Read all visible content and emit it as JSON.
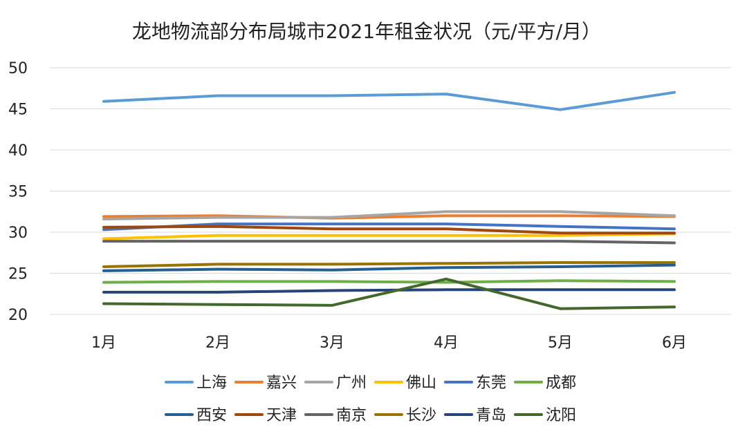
{
  "chart_data": {
    "type": "line",
    "title": "龙地物流部分布局城市2021年租金状况（元/平方/月）",
    "xlabel": "",
    "ylabel": "",
    "categories": [
      "1月",
      "2月",
      "3月",
      "4月",
      "5月",
      "6月"
    ],
    "ylim": [
      20,
      50
    ],
    "yticks": [
      20,
      25,
      30,
      35,
      40,
      45,
      50
    ],
    "grid": true,
    "legend_position": "bottom",
    "series": [
      {
        "name": "上海",
        "color": "#5B9BD5",
        "values": [
          45.9,
          46.6,
          46.6,
          46.8,
          44.9,
          47.0
        ]
      },
      {
        "name": "嘉兴",
        "color": "#ED7D31",
        "values": [
          31.9,
          32.0,
          31.7,
          32.0,
          32.0,
          31.9
        ]
      },
      {
        "name": "广州",
        "color": "#A5A5A5",
        "values": [
          31.6,
          31.8,
          31.8,
          32.5,
          32.5,
          32.0
        ]
      },
      {
        "name": "佛山",
        "color": "#FFC000",
        "values": [
          29.2,
          29.6,
          29.6,
          29.6,
          29.6,
          29.8
        ]
      },
      {
        "name": "东莞",
        "color": "#4472C4",
        "values": [
          30.3,
          31.0,
          31.0,
          31.0,
          30.7,
          30.4
        ]
      },
      {
        "name": "成都",
        "color": "#70AD47",
        "values": [
          23.9,
          24.0,
          24.0,
          23.9,
          24.1,
          24.0
        ]
      },
      {
        "name": "西安",
        "color": "#255E91",
        "values": [
          25.3,
          25.5,
          25.4,
          25.7,
          25.8,
          26.0
        ]
      },
      {
        "name": "天津",
        "color": "#9E480E",
        "values": [
          30.6,
          30.7,
          30.4,
          30.4,
          29.9,
          29.9
        ]
      },
      {
        "name": "南京",
        "color": "#636363",
        "values": [
          28.9,
          28.9,
          28.9,
          28.9,
          28.9,
          28.7
        ]
      },
      {
        "name": "长沙",
        "color": "#997300",
        "values": [
          25.8,
          26.1,
          26.1,
          26.2,
          26.3,
          26.3
        ]
      },
      {
        "name": "青岛",
        "color": "#264478",
        "values": [
          22.7,
          22.7,
          22.9,
          23.0,
          23.0,
          23.0
        ]
      },
      {
        "name": "沈阳",
        "color": "#43682B",
        "values": [
          21.3,
          21.2,
          21.1,
          24.3,
          20.7,
          20.9
        ]
      }
    ]
  }
}
